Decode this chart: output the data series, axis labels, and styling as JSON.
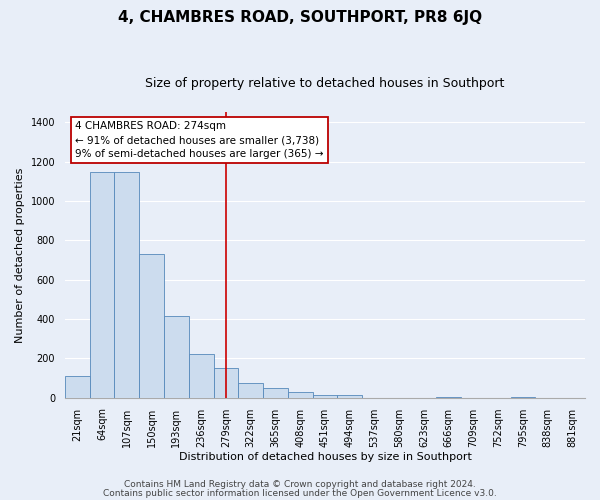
{
  "title": "4, CHAMBRES ROAD, SOUTHPORT, PR8 6JQ",
  "subtitle": "Size of property relative to detached houses in Southport",
  "xlabel": "Distribution of detached houses by size in Southport",
  "ylabel": "Number of detached properties",
  "bar_labels": [
    "21sqm",
    "64sqm",
    "107sqm",
    "150sqm",
    "193sqm",
    "236sqm",
    "279sqm",
    "322sqm",
    "365sqm",
    "408sqm",
    "451sqm",
    "494sqm",
    "537sqm",
    "580sqm",
    "623sqm",
    "666sqm",
    "709sqm",
    "752sqm",
    "795sqm",
    "838sqm",
    "881sqm"
  ],
  "bar_values": [
    110,
    1150,
    1150,
    730,
    415,
    220,
    150,
    75,
    50,
    30,
    15,
    15,
    0,
    0,
    0,
    5,
    0,
    0,
    5,
    0,
    0
  ],
  "bar_color": "#ccdcee",
  "bar_edge_color": "#5588bb",
  "ylim_max": 1450,
  "yticks": [
    0,
    200,
    400,
    600,
    800,
    1000,
    1200,
    1400
  ],
  "vline_x_index": 6,
  "vline_color": "#cc0000",
  "annot_line1": "4 CHAMBRES ROAD: 274sqm",
  "annot_line2": "← 91% of detached houses are smaller (3,738)",
  "annot_line3": "9% of semi-detached houses are larger (365) →",
  "annotation_fc": "#ffffff",
  "annotation_ec": "#bb0000",
  "footer1": "Contains HM Land Registry data © Crown copyright and database right 2024.",
  "footer2": "Contains public sector information licensed under the Open Government Licence v3.0.",
  "bg_color": "#e8eef8",
  "grid_color": "#ffffff",
  "title_fontsize": 11,
  "subtitle_fontsize": 9,
  "label_fontsize": 8,
  "tick_fontsize": 7,
  "footer_fontsize": 6.5
}
